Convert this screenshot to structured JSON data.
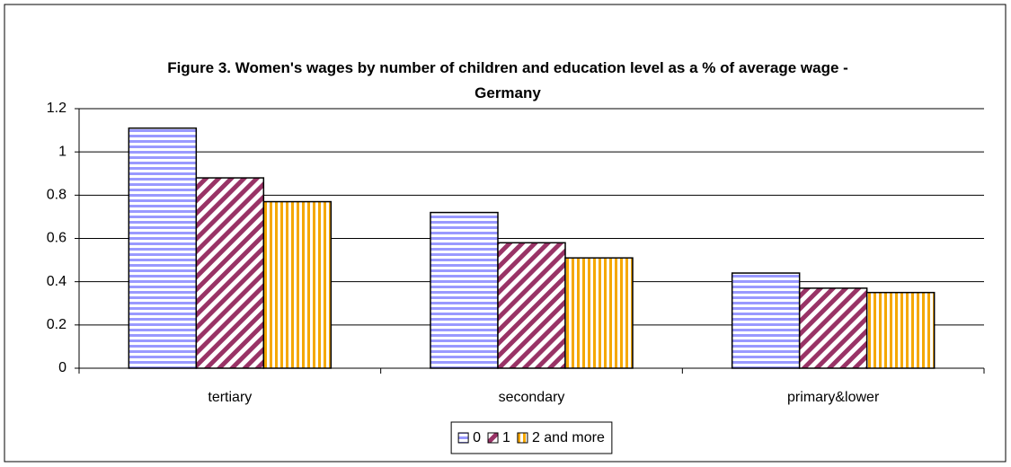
{
  "chart_data": {
    "type": "bar",
    "title": "Figure 3. Women's wages by number of children and education level as a % of average wage - Germany",
    "categories": [
      "tertiary",
      "secondary",
      "primary&lower"
    ],
    "series": [
      {
        "name": "0",
        "color": "#9999ff",
        "values": [
          1.11,
          0.72,
          0.44
        ]
      },
      {
        "name": "1",
        "color": "#993366",
        "values": [
          0.88,
          0.58,
          0.37
        ]
      },
      {
        "name": "2 and more",
        "color": "#f5a800",
        "values": [
          0.77,
          0.51,
          0.35
        ]
      }
    ],
    "ylim": [
      0,
      1.2
    ],
    "yticks": [
      0,
      0.2,
      0.4,
      0.6,
      0.8,
      1,
      1.2
    ],
    "grid": true,
    "legend": "bottom"
  }
}
